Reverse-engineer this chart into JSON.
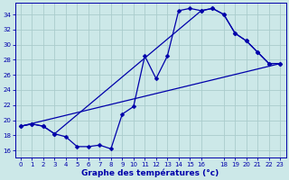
{
  "xlabel": "Graphe des températures (°c)",
  "background_color": "#cce8e8",
  "grid_color": "#aacccc",
  "line_color": "#0000aa",
  "xlim": [
    -0.5,
    23.5
  ],
  "ylim": [
    15.0,
    35.5
  ],
  "yticks": [
    16,
    18,
    20,
    22,
    24,
    26,
    28,
    30,
    32,
    34
  ],
  "xticks": [
    0,
    1,
    2,
    3,
    4,
    5,
    6,
    7,
    8,
    9,
    10,
    11,
    12,
    13,
    14,
    15,
    16,
    18,
    19,
    20,
    21,
    22,
    23
  ],
  "xlabels": [
    "0",
    "1",
    "2",
    "3",
    "4",
    "5",
    "6",
    "7",
    "8",
    "9",
    "10",
    "11",
    "12",
    "13",
    "14",
    "15",
    "16",
    "18",
    "19",
    "20",
    "21",
    "22",
    "23"
  ],
  "line1_x": [
    0,
    1,
    2,
    3,
    16,
    17,
    18,
    19,
    20,
    21,
    22,
    23
  ],
  "line1_y": [
    19.2,
    19.5,
    19.2,
    18.2,
    34.5,
    34.8,
    34.0,
    31.5,
    30.5,
    29.0,
    27.5,
    27.5
  ],
  "line2_x": [
    0,
    1,
    2,
    3,
    4,
    5,
    6,
    7,
    8,
    9,
    10,
    11,
    12,
    13,
    14,
    15,
    16,
    17,
    18,
    19,
    20,
    21,
    22,
    23
  ],
  "line2_y": [
    19.2,
    19.5,
    19.2,
    18.2,
    17.8,
    16.5,
    16.5,
    16.7,
    16.2,
    20.8,
    21.8,
    28.5,
    25.5,
    28.5,
    34.5,
    34.8,
    34.5,
    34.8,
    34.0,
    31.5,
    30.5,
    29.0,
    27.5,
    27.5
  ],
  "line3_x": [
    0,
    23
  ],
  "line3_y": [
    19.2,
    27.5
  ],
  "marker": "D",
  "markersize": 2.5,
  "linewidth": 0.9
}
